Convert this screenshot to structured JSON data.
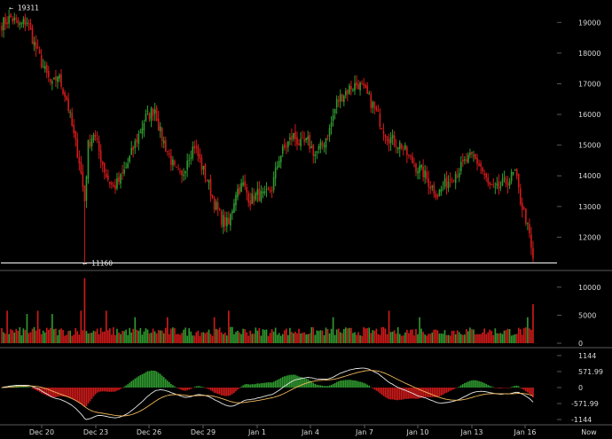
{
  "chart_data": [
    {
      "type": "candlestick",
      "ylim": [
        11000,
        19500
      ],
      "y_ticks": [
        12000,
        13000,
        14000,
        15000,
        16000,
        17000,
        18000,
        19000
      ],
      "annotations": {
        "high_label": "← 19311",
        "high_value": 19311,
        "low_label": "← 11160",
        "low_value": 11160
      },
      "control_points": [
        [
          0,
          18950
        ],
        [
          5,
          19150
        ],
        [
          10,
          18900
        ],
        [
          14,
          19050
        ],
        [
          18,
          18300
        ],
        [
          24,
          17400
        ],
        [
          28,
          16900
        ],
        [
          31,
          17300
        ],
        [
          36,
          16500
        ],
        [
          40,
          15300
        ],
        [
          43,
          14500
        ],
        [
          46,
          13200
        ],
        [
          48,
          15000
        ],
        [
          51,
          15400
        ],
        [
          55,
          14600
        ],
        [
          58,
          14000
        ],
        [
          62,
          13600
        ],
        [
          66,
          13900
        ],
        [
          70,
          14400
        ],
        [
          75,
          15200
        ],
        [
          80,
          15900
        ],
        [
          85,
          16200
        ],
        [
          88,
          15400
        ],
        [
          92,
          14800
        ],
        [
          96,
          14200
        ],
        [
          100,
          13900
        ],
        [
          103,
          14600
        ],
        [
          107,
          15000
        ],
        [
          111,
          14300
        ],
        [
          114,
          13900
        ],
        [
          118,
          13100
        ],
        [
          122,
          12600
        ],
        [
          126,
          12400
        ],
        [
          130,
          13500
        ],
        [
          134,
          13700
        ],
        [
          138,
          13200
        ],
        [
          142,
          13400
        ],
        [
          146,
          13300
        ],
        [
          150,
          13600
        ],
        [
          154,
          14600
        ],
        [
          158,
          15000
        ],
        [
          162,
          15300
        ],
        [
          166,
          15000
        ],
        [
          170,
          15100
        ],
        [
          174,
          14700
        ],
        [
          178,
          15000
        ],
        [
          182,
          15500
        ],
        [
          186,
          16400
        ],
        [
          190,
          16700
        ],
        [
          194,
          16900
        ],
        [
          198,
          17000
        ],
        [
          202,
          16700
        ],
        [
          206,
          16300
        ],
        [
          210,
          15800
        ],
        [
          214,
          15300
        ],
        [
          218,
          15100
        ],
        [
          222,
          15000
        ],
        [
          226,
          14600
        ],
        [
          230,
          14300
        ],
        [
          234,
          14100
        ],
        [
          238,
          13700
        ],
        [
          242,
          13400
        ],
        [
          246,
          13700
        ],
        [
          250,
          14000
        ],
        [
          254,
          14200
        ],
        [
          258,
          14500
        ],
        [
          262,
          14600
        ],
        [
          266,
          14300
        ],
        [
          270,
          13700
        ],
        [
          274,
          13500
        ],
        [
          278,
          13700
        ],
        [
          282,
          13900
        ],
        [
          285,
          14100
        ],
        [
          288,
          13200
        ],
        [
          291,
          12600
        ],
        [
          293,
          12000
        ],
        [
          295,
          11200
        ]
      ],
      "volume": {
        "ylim": [
          0,
          12500
        ],
        "y_ticks": [
          0,
          5000,
          10000
        ],
        "spikes": [
          [
            3,
            0.5
          ],
          [
            14,
            0.45
          ],
          [
            20,
            0.5
          ],
          [
            28,
            0.45
          ],
          [
            44,
            0.5
          ],
          [
            46,
            1.0
          ],
          [
            58,
            0.5
          ],
          [
            74,
            0.4
          ],
          [
            92,
            0.4
          ],
          [
            118,
            0.4
          ],
          [
            126,
            0.5
          ],
          [
            184,
            0.4
          ],
          [
            215,
            0.5
          ],
          [
            232,
            0.4
          ],
          [
            292,
            0.4
          ],
          [
            295,
            0.6
          ]
        ]
      },
      "macd": {
        "ylim": [
          -1300,
          1300
        ],
        "y_ticks": [
          1144,
          571.99,
          0,
          -571.99,
          -1144
        ]
      },
      "x_ticks": [
        "Dec 20",
        "Dec 23",
        "Dec 26",
        "Dec 29",
        "Jan 1",
        "Jan 4",
        "Jan 7",
        "Jan 10",
        "Jan 13",
        "Jan 16",
        "Now"
      ],
      "colors": {
        "up": "#2f9a2f",
        "down": "#d01a1a",
        "axis": "#5a5a5a",
        "guide": "#ffffff",
        "signal": "#f0b85a",
        "macd_line": "#e6e6e6"
      }
    }
  ]
}
